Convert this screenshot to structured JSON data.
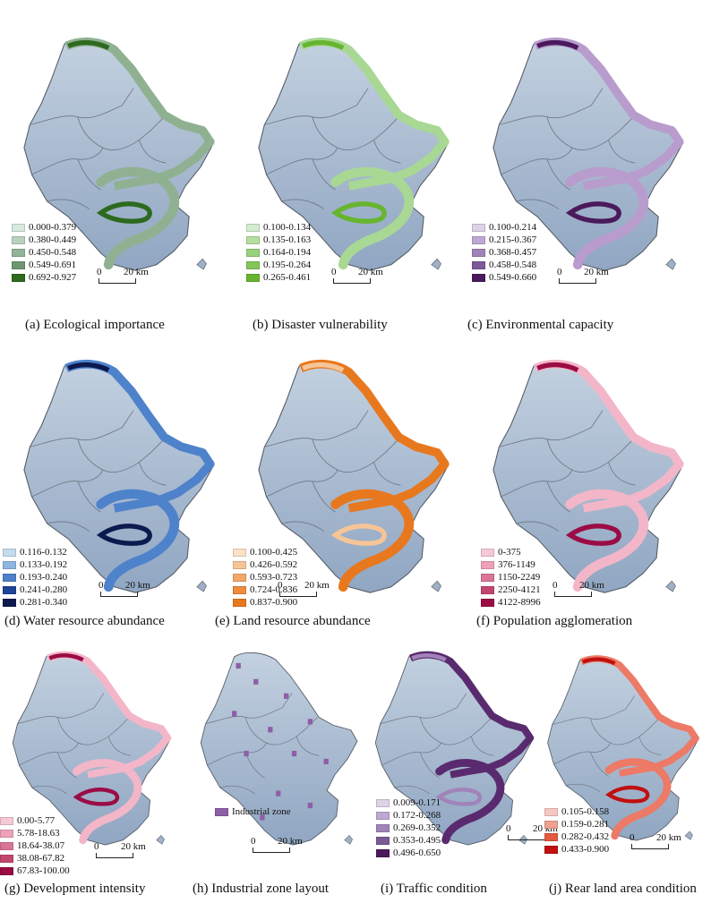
{
  "scale_label_zero": "0",
  "scale_label_distance": "20 km",
  "panels": [
    {
      "caption": "(a) Ecological importance",
      "legend": [
        {
          "label": "0.000-0.379",
          "color": "#d6e9df"
        },
        {
          "label": "0.380-0.449",
          "color": "#b9d2bf"
        },
        {
          "label": "0.450-0.548",
          "color": "#93b497"
        },
        {
          "label": "0.549-0.691",
          "color": "#6f9672"
        },
        {
          "label": "0.692-0.927",
          "color": "#2d6a1f"
        }
      ],
      "coast_color": "#8fb192",
      "accent_color": "#2d6a1f"
    },
    {
      "caption": "(b) Disaster vulnerability",
      "legend": [
        {
          "label": "0.100-0.134",
          "color": "#d4ecd0"
        },
        {
          "label": "0.135-0.163",
          "color": "#b6df9f"
        },
        {
          "label": "0.164-0.194",
          "color": "#99d27d"
        },
        {
          "label": "0.195-0.264",
          "color": "#84c65a"
        },
        {
          "label": "0.265-0.461",
          "color": "#67b52f"
        }
      ],
      "coast_color": "#a8d893",
      "accent_color": "#67b52f"
    },
    {
      "caption": "(c) Environmental capacity",
      "legend": [
        {
          "label": "0.100-0.214",
          "color": "#ddd2e6"
        },
        {
          "label": "0.215-0.367",
          "color": "#bfa8d2"
        },
        {
          "label": "0.368-0.457",
          "color": "#a183b9"
        },
        {
          "label": "0.458-0.548",
          "color": "#7c5a98"
        },
        {
          "label": "0.549-0.660",
          "color": "#4a1a5c"
        }
      ],
      "coast_color": "#b89ccd",
      "accent_color": "#4a1a5c"
    },
    {
      "caption": "(d) Water resource abundance",
      "legend": [
        {
          "label": "0.116-0.132",
          "color": "#c5dcef"
        },
        {
          "label": "0.133-0.192",
          "color": "#8db6e2"
        },
        {
          "label": "0.193-0.240",
          "color": "#4e82cb"
        },
        {
          "label": "0.241-0.280",
          "color": "#20439a"
        },
        {
          "label": "0.281-0.340",
          "color": "#0d1a4f"
        }
      ],
      "coast_color": "#4e82cb",
      "accent_color": "#0d1a4f"
    },
    {
      "caption": "(e) Land resource abundance",
      "legend": [
        {
          "label": "0.100-0.425",
          "color": "#fbe1c6"
        },
        {
          "label": "0.426-0.592",
          "color": "#f6c597"
        },
        {
          "label": "0.593-0.723",
          "color": "#f3a86a"
        },
        {
          "label": "0.724-0.836",
          "color": "#ee8b3c"
        },
        {
          "label": "0.837-0.900",
          "color": "#e8781e"
        }
      ],
      "coast_color": "#e8781e",
      "accent_color": "#f6c597"
    },
    {
      "caption": "(f) Population agglomeration",
      "legend": [
        {
          "label": "0-375",
          "color": "#f7c8d6"
        },
        {
          "label": "376-1149",
          "color": "#efa1b8"
        },
        {
          "label": "1150-2249",
          "color": "#da7596"
        },
        {
          "label": "2250-4121",
          "color": "#c2476f"
        },
        {
          "label": "4122-8996",
          "color": "#9b0c45"
        }
      ],
      "coast_color": "#f3b6c8",
      "accent_color": "#9b0c45"
    },
    {
      "caption": "(g) Development intensity",
      "legend": [
        {
          "label": "0.00-5.77",
          "color": "#f7c8d6"
        },
        {
          "label": "5.78-18.63",
          "color": "#efa1b8"
        },
        {
          "label": "18.64-38.07",
          "color": "#da7596"
        },
        {
          "label": "38.08-67.82",
          "color": "#c2476f"
        },
        {
          "label": "67.83-100.00",
          "color": "#9b0c45"
        }
      ],
      "coast_color": "#f3b6c8",
      "accent_color": "#9b0c45"
    },
    {
      "caption": "(h) Industrial zone layout",
      "legend": [
        {
          "label": "Industrial zone",
          "color": "#8e5fa8"
        }
      ],
      "coast_color": "",
      "accent_color": "#8e5fa8"
    },
    {
      "caption": "(i) Traffic condition",
      "legend": [
        {
          "label": "0.009-0.171",
          "color": "#ddd2e6"
        },
        {
          "label": "0.172-0.268",
          "color": "#bfa8d2"
        },
        {
          "label": "0.269-0.352",
          "color": "#a183b9"
        },
        {
          "label": "0.353-0.495",
          "color": "#7c5a98"
        },
        {
          "label": "0.496-0.650",
          "color": "#4a1a5c"
        }
      ],
      "coast_color": "#5a2a6e",
      "accent_color": "#a183b9"
    },
    {
      "caption": "(j) Rear land area condition",
      "legend": [
        {
          "label": "0.105-0.158",
          "color": "#f6c8c0"
        },
        {
          "label": "0.159-0.281",
          "color": "#f0a090"
        },
        {
          "label": "0.282-0.432",
          "color": "#e35a40"
        },
        {
          "label": "0.433-0.900",
          "color": "#c01010"
        }
      ],
      "coast_color": "#ec7a66",
      "accent_color": "#c01010"
    }
  ]
}
